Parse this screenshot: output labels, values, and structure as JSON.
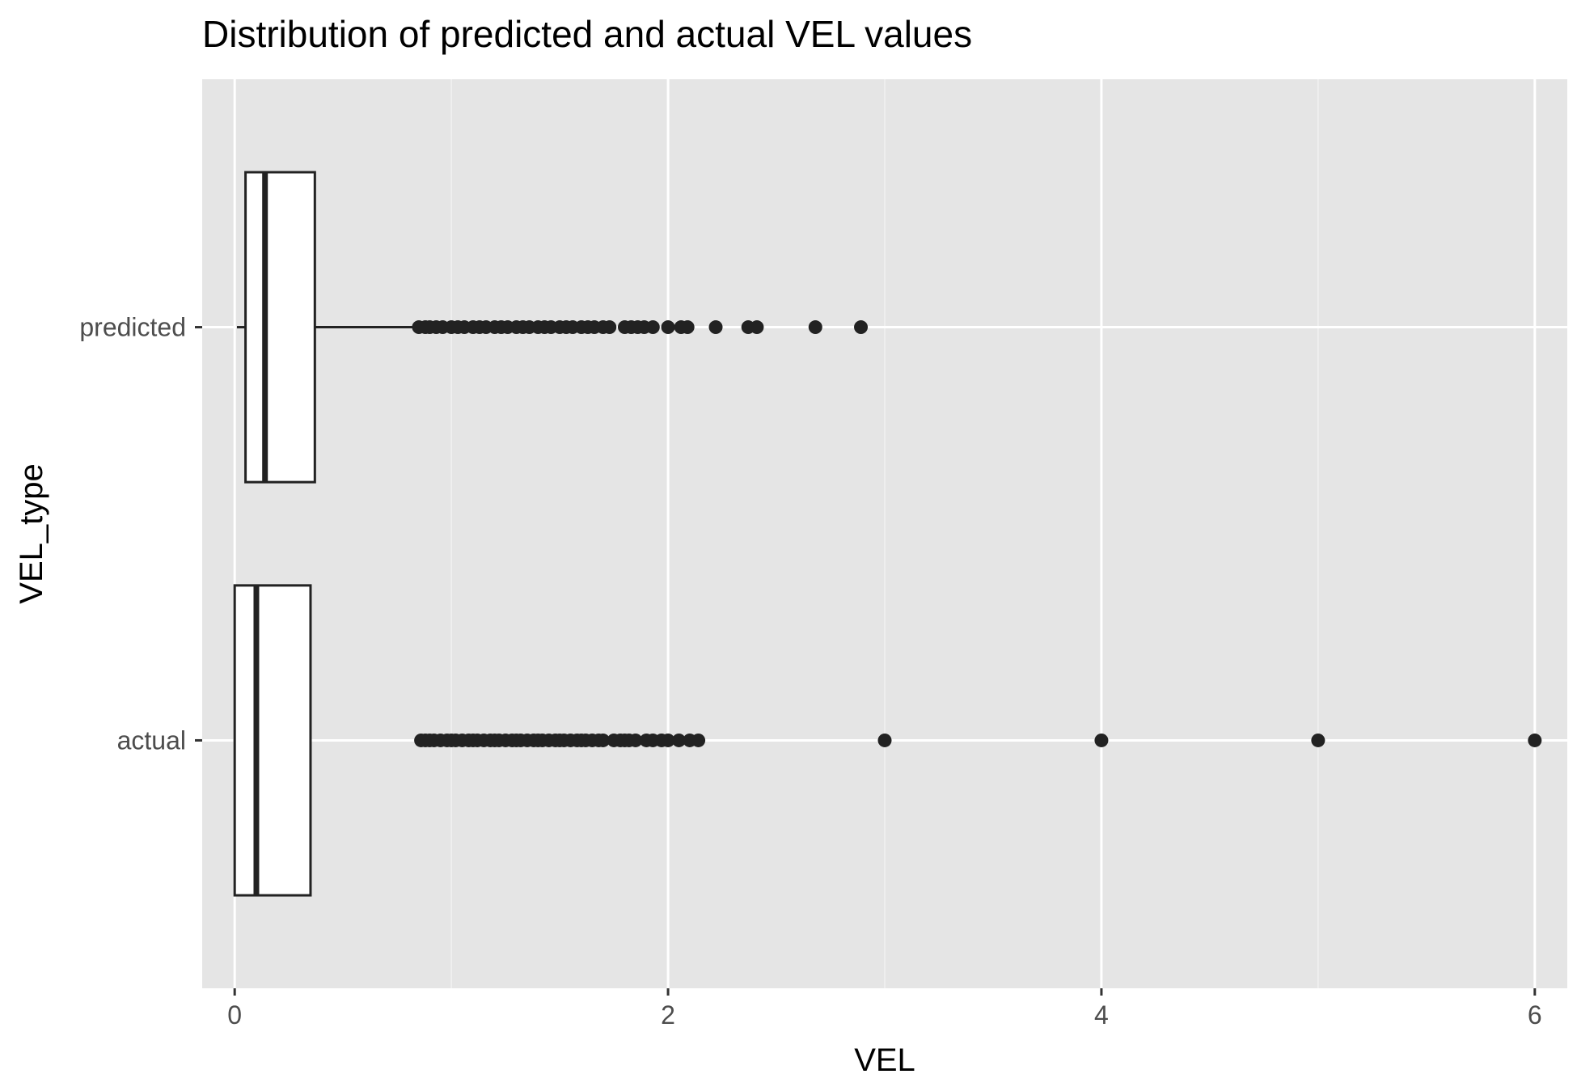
{
  "chart_data": {
    "type": "boxplot",
    "orientation": "horizontal",
    "title": "Distribution of predicted and actual VEL values",
    "xlabel": "VEL",
    "ylabel": "VEL_type",
    "xlim": [
      -0.15,
      6.15
    ],
    "x_ticks": [
      0,
      2,
      4,
      6
    ],
    "x_minor_ticks": [
      1,
      3,
      5
    ],
    "grid": true,
    "categories": [
      "actual",
      "predicted"
    ],
    "series": [
      {
        "category": "actual",
        "whisker_low": 0,
        "q1": 0,
        "median": 0.1,
        "q3": 0.35,
        "whisker_high": 0.35,
        "outliers": [
          0.86,
          0.88,
          0.9,
          0.92,
          0.95,
          0.98,
          1.0,
          1.02,
          1.05,
          1.08,
          1.1,
          1.12,
          1.15,
          1.18,
          1.2,
          1.22,
          1.25,
          1.28,
          1.3,
          1.32,
          1.35,
          1.38,
          1.4,
          1.42,
          1.45,
          1.48,
          1.5,
          1.52,
          1.55,
          1.58,
          1.6,
          1.62,
          1.65,
          1.68,
          1.7,
          1.75,
          1.78,
          1.8,
          1.82,
          1.85,
          1.9,
          1.93,
          1.97,
          2.0,
          2.05,
          2.1,
          2.14,
          3.0,
          4.0,
          5.0,
          6.0
        ]
      },
      {
        "category": "predicted",
        "whisker_low": 0.01,
        "q1": 0.05,
        "median": 0.14,
        "q3": 0.37,
        "whisker_high": 0.84,
        "outliers": [
          0.85,
          0.88,
          0.9,
          0.93,
          0.96,
          1.0,
          1.03,
          1.06,
          1.1,
          1.13,
          1.16,
          1.2,
          1.23,
          1.26,
          1.3,
          1.33,
          1.36,
          1.4,
          1.43,
          1.46,
          1.5,
          1.53,
          1.56,
          1.6,
          1.63,
          1.66,
          1.7,
          1.73,
          1.8,
          1.83,
          1.86,
          1.89,
          1.93,
          2.0,
          2.06,
          2.09,
          2.22,
          2.37,
          2.41,
          2.68,
          2.89
        ]
      }
    ],
    "colors": {
      "panel_background": "#e5e5e5",
      "grid_major": "#ffffff",
      "grid_minor": "#f2f2f2",
      "box_fill": "#ffffff",
      "box_line": "#222222",
      "outlier": "#222222",
      "tick_text": "#4d4d4d",
      "title_text": "#000000"
    }
  }
}
